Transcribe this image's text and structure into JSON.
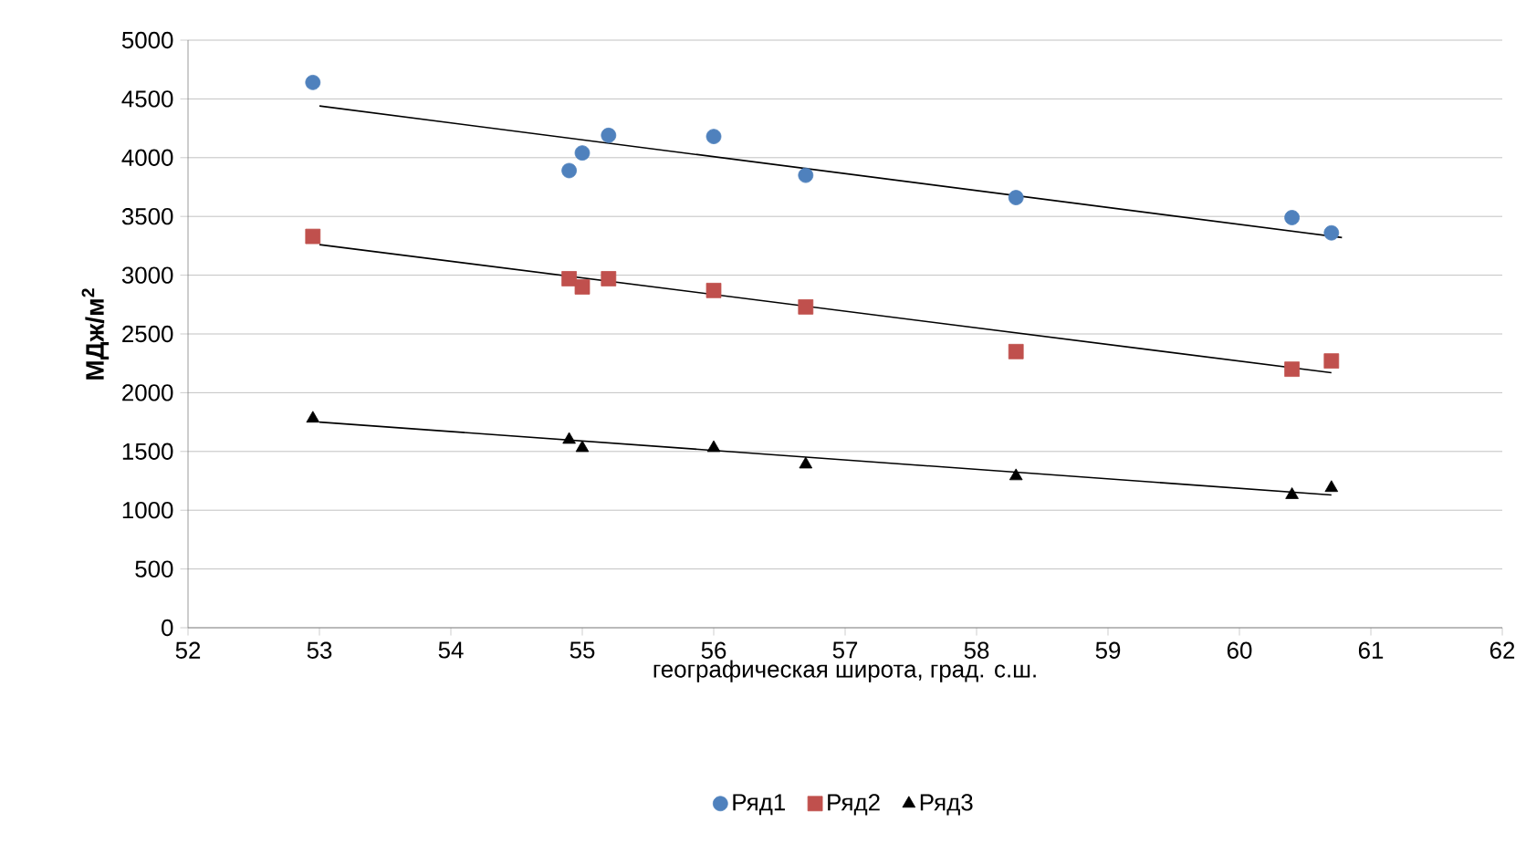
{
  "chart_data": {
    "type": "scatter",
    "xlabel": "географическая широта, град. с.ш.",
    "ylabel": "МДж/м$^{2}$",
    "xlim": [
      52,
      62
    ],
    "ylim": [
      0,
      5000
    ],
    "xticks": [
      52,
      53,
      54,
      55,
      56,
      57,
      58,
      59,
      60,
      61,
      62
    ],
    "yticks": [
      0,
      500,
      1000,
      1500,
      2000,
      2500,
      3000,
      3500,
      4000,
      4500,
      5000
    ],
    "grid": "y",
    "legend": "bottom",
    "series": [
      {
        "name": "Ряд1",
        "color": "#4f81bd",
        "marker": "circle",
        "x": [
          52.95,
          54.9,
          55.0,
          55.2,
          56.0,
          56.7,
          58.3,
          60.4,
          60.7
        ],
        "values": [
          4640,
          3890,
          4040,
          4190,
          4180,
          3850,
          3660,
          3490,
          3360
        ]
      },
      {
        "name": "Ряд2",
        "color": "#c0504d",
        "marker": "square",
        "x": [
          52.95,
          54.9,
          55.0,
          55.2,
          56.0,
          56.7,
          58.3,
          60.4,
          60.7
        ],
        "values": [
          3330,
          2970,
          2900,
          2970,
          2870,
          2730,
          2350,
          2200,
          2270
        ]
      },
      {
        "name": "Ряд3",
        "color": "#000000",
        "marker": "triangle",
        "x": [
          52.95,
          54.9,
          55.0,
          56.0,
          56.7,
          58.3,
          60.4,
          60.7
        ],
        "values": [
          1780,
          1600,
          1530,
          1530,
          1390,
          1290,
          1130,
          1190
        ]
      },
      {
        "type": "line",
        "color": "#000000",
        "x": [
          53.0,
          60.78
        ],
        "values": [
          4440,
          3320
        ]
      },
      {
        "type": "line",
        "color": "#000000",
        "x": [
          53.0,
          60.7
        ],
        "values": [
          3260,
          2170
        ]
      },
      {
        "type": "line",
        "color": "#000000",
        "x": [
          53.0,
          60.7
        ],
        "values": [
          1750,
          1130
        ]
      }
    ]
  }
}
